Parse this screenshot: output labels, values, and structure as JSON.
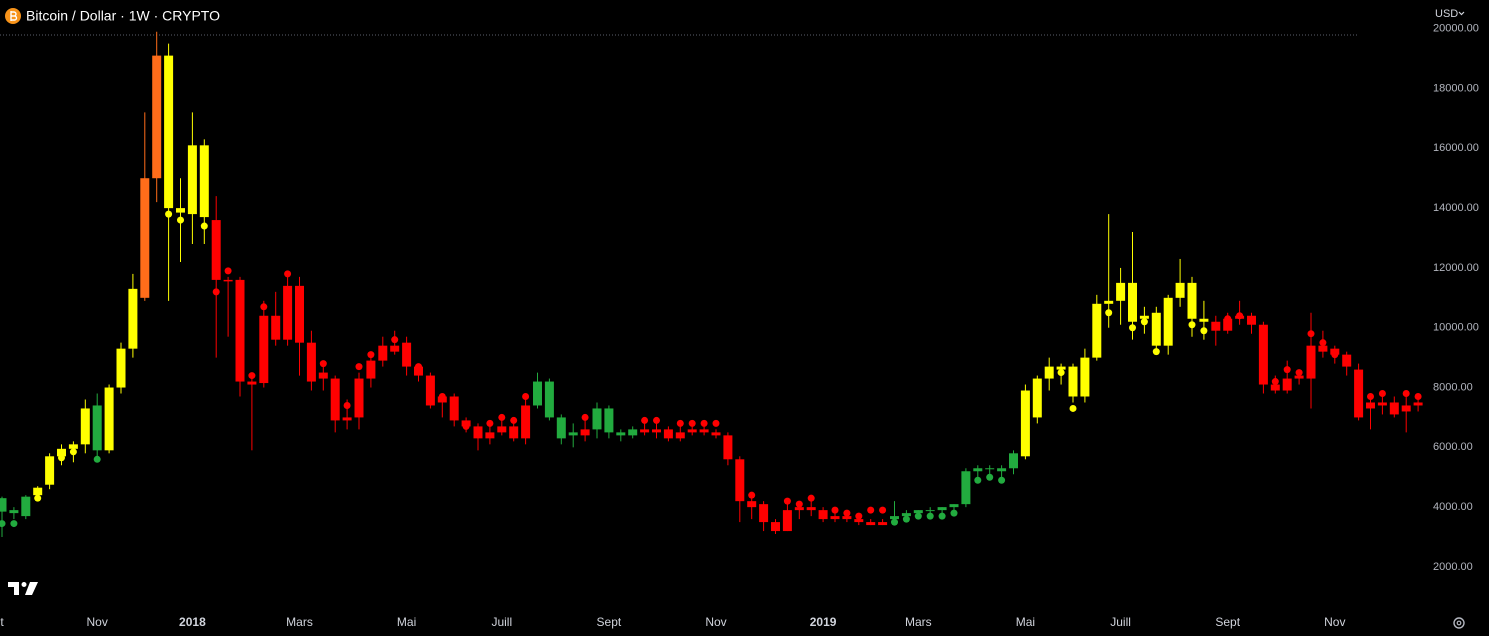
{
  "chart_data": {
    "type": "candlestick",
    "title": "Bitcoin / Dollar · 1W · CRYPTO",
    "currency": "USD",
    "categories": [
      "t",
      null,
      null,
      null,
      null,
      null,
      null,
      null,
      "Nov",
      null,
      null,
      null,
      null,
      null,
      null,
      null,
      "2018",
      null,
      null,
      null,
      null,
      null,
      null,
      null,
      null,
      "Mars",
      null,
      null,
      null,
      null,
      null,
      null,
      null,
      null,
      "Mai",
      null,
      null,
      null,
      null,
      null,
      null,
      null,
      "Juill",
      null,
      null,
      null,
      null,
      null,
      null,
      null,
      null,
      "Sept",
      null,
      null,
      null,
      null,
      null,
      null,
      null,
      null,
      "Nov",
      null,
      null,
      null,
      null,
      null,
      null,
      null,
      null,
      "2019",
      null,
      null,
      null,
      null,
      null,
      null,
      null,
      "Mars",
      null,
      null,
      null,
      null,
      null,
      null,
      null,
      null,
      "Mai",
      null,
      null,
      null,
      null,
      null,
      null,
      null,
      "Juill",
      null,
      null,
      null,
      null,
      null,
      null,
      null,
      null,
      "Sept",
      null,
      null,
      null,
      null,
      null,
      null,
      null,
      null,
      "Nov",
      null,
      null,
      null,
      null,
      null,
      null,
      null
    ],
    "open": [
      3850,
      3800,
      3700,
      4400,
      4750,
      5700,
      5950,
      6100,
      5900,
      5900,
      8000,
      9300,
      11000,
      15000,
      19100,
      14000,
      13800,
      16100,
      13600,
      11600,
      11600,
      8200,
      8150,
      10400,
      9600,
      11400,
      9500,
      8500,
      8300,
      6900,
      7000,
      8300,
      8900,
      9400,
      9500,
      8700,
      8400,
      7700,
      7700,
      6900,
      6700,
      6300,
      6500,
      6700,
      6300,
      7400,
      8200,
      7000,
      6500,
      6400,
      6600,
      7300,
      6500,
      6400,
      6600,
      6500,
      6600,
      6300,
      6500,
      6600,
      6500,
      6400,
      5600,
      4200,
      4100,
      3500,
      3200,
      3900,
      4000,
      3900,
      3600,
      3700,
      3600,
      3500,
      3400,
      3600,
      3700,
      3800,
      3900,
      3900,
      4000,
      4100,
      5200,
      5300,
      5300,
      5300,
      5700,
      7000,
      8300,
      8700,
      8700,
      7700,
      9000,
      10800,
      10900,
      11500,
      10400,
      10500,
      9400,
      11000,
      11500,
      10300,
      10200,
      9900,
      10300,
      10400,
      10100,
      8100,
      7900,
      8300,
      8300,
      9400,
      9300,
      9100,
      8600,
      7300,
      7500,
      7500,
      7200,
      7400
    ],
    "high": [
      4350,
      4000,
      4400,
      4700,
      5800,
      6100,
      6200,
      7600,
      7800,
      8100,
      9500,
      11800,
      17200,
      19900,
      19500,
      15000,
      17200,
      16300,
      14400,
      11700,
      11700,
      8500,
      10900,
      11200,
      11800,
      11700,
      9900,
      8900,
      8400,
      7600,
      8500,
      9100,
      9700,
      9900,
      9700,
      8800,
      8500,
      7800,
      7800,
      7000,
      6800,
      6800,
      7000,
      6900,
      7700,
      8500,
      8300,
      7100,
      6800,
      7100,
      7500,
      7400,
      6600,
      6700,
      7000,
      6900,
      6700,
      6700,
      6700,
      6700,
      6600,
      6500,
      5700,
      4400,
      4200,
      3600,
      4200,
      4100,
      4200,
      4000,
      3800,
      3800,
      3700,
      3600,
      3600,
      4200,
      3900,
      3900,
      4000,
      4000,
      4100,
      5300,
      5400,
      5400,
      5400,
      5900,
      8100,
      8400,
      9000,
      8800,
      8800,
      9300,
      11100,
      13800,
      12000,
      13200,
      10700,
      10700,
      11100,
      12300,
      11700,
      10900,
      10400,
      10500,
      10900,
      10500,
      10200,
      8400,
      8900,
      8600,
      10500,
      9900,
      9400,
      9200,
      8800,
      7700,
      7900,
      7700,
      7700,
      7800
    ],
    "low": [
      3000,
      3600,
      3600,
      4200,
      4600,
      5400,
      5500,
      5800,
      5500,
      5800,
      7800,
      9000,
      10900,
      14200,
      10900,
      12200,
      12800,
      12800,
      9000,
      9700,
      7700,
      5900,
      8000,
      9400,
      9400,
      8400,
      7900,
      7900,
      6500,
      6600,
      6600,
      8000,
      8700,
      9100,
      8400,
      8200,
      7300,
      7000,
      6700,
      6500,
      5900,
      6100,
      6400,
      6200,
      6100,
      7300,
      6900,
      6100,
      6000,
      6200,
      6300,
      6300,
      6200,
      6300,
      6400,
      6300,
      6200,
      6200,
      6400,
      6400,
      6300,
      5400,
      3500,
      3600,
      3200,
      3100,
      3200,
      3600,
      3700,
      3500,
      3500,
      3500,
      3400,
      3400,
      3400,
      3500,
      3600,
      3700,
      3700,
      3800,
      3800,
      4000,
      4900,
      5000,
      4900,
      5100,
      5600,
      6800,
      7900,
      8100,
      7500,
      7500,
      8900,
      10000,
      10100,
      9600,
      9800,
      9200,
      9100,
      10700,
      9700,
      9600,
      9400,
      9800,
      10100,
      9800,
      7800,
      7800,
      7800,
      8100,
      7300,
      9000,
      8800,
      8400,
      6900,
      6600,
      7100,
      7000,
      6500,
      7200
    ],
    "close": [
      4300,
      3900,
      4350,
      4650,
      5700,
      5950,
      6100,
      7300,
      7400,
      8000,
      9300,
      11300,
      15000,
      19100,
      14000,
      13850,
      16100,
      13700,
      11600,
      11550,
      8200,
      8100,
      10400,
      9600,
      11400,
      9500,
      8200,
      8300,
      6900,
      7000,
      8300,
      8900,
      9400,
      9200,
      8700,
      8400,
      7400,
      7500,
      6900,
      6700,
      6300,
      6500,
      6700,
      6300,
      7400,
      8200,
      7000,
      6300,
      6400,
      6600,
      7300,
      6500,
      6400,
      6600,
      6500,
      6600,
      6300,
      6500,
      6600,
      6500,
      6400,
      5600,
      4200,
      4000,
      3500,
      3200,
      3900,
      4000,
      3900,
      3600,
      3700,
      3600,
      3500,
      3400,
      3500,
      3700,
      3800,
      3900,
      3900,
      4000,
      4100,
      5200,
      5300,
      5300,
      5200,
      5800,
      7900,
      8300,
      8700,
      8600,
      7700,
      9000,
      10800,
      10900,
      11500,
      10200,
      10300,
      9400,
      11000,
      11500,
      10300,
      10200,
      9900,
      10300,
      10400,
      10100,
      8100,
      7900,
      8300,
      8400,
      9400,
      9200,
      9100,
      8700,
      7000,
      7500,
      7400,
      7100,
      7400,
      7500
    ],
    "dots": [
      3450,
      3450,
      null,
      4300,
      null,
      5650,
      5850,
      null,
      5600,
      null,
      null,
      null,
      null,
      null,
      13800,
      13600,
      null,
      13400,
      11200,
      11900,
      null,
      8400,
      10700,
      null,
      11800,
      null,
      null,
      8800,
      null,
      7400,
      8700,
      9100,
      null,
      9600,
      null,
      8700,
      null,
      7700,
      null,
      6700,
      6500,
      6800,
      7000,
      6900,
      7700,
      null,
      null,
      null,
      null,
      7000,
      null,
      null,
      null,
      null,
      6900,
      6900,
      null,
      6800,
      6800,
      6800,
      6800,
      null,
      null,
      4400,
      null,
      null,
      4200,
      4100,
      4300,
      null,
      3900,
      3800,
      3700,
      3900,
      3900,
      3500,
      3600,
      3700,
      3700,
      3700,
      3800,
      null,
      4900,
      5000,
      4900,
      null,
      null,
      null,
      null,
      8500,
      7300,
      null,
      null,
      10500,
      null,
      10000,
      10200,
      9200,
      null,
      null,
      10100,
      9900,
      null,
      10300,
      10400,
      null,
      null,
      8200,
      8600,
      8500,
      9800,
      9500,
      9100,
      null,
      null,
      7700,
      7800,
      null,
      7800,
      7700
    ],
    "colors": [
      "#22ab3f",
      "#22ab3f",
      "#22ab3f",
      "#ffff00",
      "#ffff00",
      "#ffff00",
      "#ffff00",
      "#ffff00",
      "#22ab3f",
      "#ffff00",
      "#ffff00",
      "#ffff00",
      "#ff6d1a",
      "#ff6d1a",
      "#ffff00",
      "#ffff00",
      "#ffff00",
      "#ffff00",
      "#ff0000",
      "#ff0000",
      "#ff0000",
      "#ff0000",
      "#ff0000",
      "#ff0000",
      "#ff0000",
      "#ff0000",
      "#ff0000",
      "#ff0000",
      "#ff0000",
      "#ff0000",
      "#ff0000",
      "#ff0000",
      "#ff0000",
      "#ff0000",
      "#ff0000",
      "#ff0000",
      "#ff0000",
      "#ff0000",
      "#ff0000",
      "#ff0000",
      "#ff0000",
      "#ff0000",
      "#ff0000",
      "#ff0000",
      "#ff0000",
      "#22ab3f",
      "#22ab3f",
      "#22ab3f",
      "#22ab3f",
      "#ff0000",
      "#22ab3f",
      "#22ab3f",
      "#22ab3f",
      "#22ab3f",
      "#ff0000",
      "#ff0000",
      "#ff0000",
      "#ff0000",
      "#ff0000",
      "#ff0000",
      "#ff0000",
      "#ff0000",
      "#ff0000",
      "#ff0000",
      "#ff0000",
      "#ff0000",
      "#ff0000",
      "#ff0000",
      "#ff0000",
      "#ff0000",
      "#ff0000",
      "#ff0000",
      "#ff0000",
      "#ff0000",
      "#ff0000",
      "#22ab3f",
      "#22ab3f",
      "#22ab3f",
      "#22ab3f",
      "#22ab3f",
      "#22ab3f",
      "#22ab3f",
      "#22ab3f",
      "#22ab3f",
      "#22ab3f",
      "#22ab3f",
      "#ffff00",
      "#ffff00",
      "#ffff00",
      "#ffff00",
      "#ffff00",
      "#ffff00",
      "#ffff00",
      "#ffff00",
      "#ffff00",
      "#ffff00",
      "#ffff00",
      "#ffff00",
      "#ffff00",
      "#ffff00",
      "#ffff00",
      "#ffff00",
      "#ff0000",
      "#ff0000",
      "#ff0000",
      "#ff0000",
      "#ff0000",
      "#ff0000",
      "#ff0000",
      "#ff0000",
      "#ff0000",
      "#ff0000",
      "#ff0000",
      "#ff0000",
      "#ff0000",
      "#ff0000",
      "#ff0000",
      "#ff0000",
      "#ff0000",
      "#ff0000"
    ],
    "ylim": [
      560,
      20960
    ],
    "yticks": [
      {
        "value": 2000,
        "label": "2000.00"
      },
      {
        "value": 4000,
        "label": "4000.00"
      },
      {
        "value": 6000,
        "label": "6000.00"
      },
      {
        "value": 8000,
        "label": "8000.00"
      },
      {
        "value": 10000,
        "label": "10000.00"
      },
      {
        "value": 12000,
        "label": "12000.00"
      },
      {
        "value": 14000,
        "label": "14000.00"
      },
      {
        "value": 16000,
        "label": "16000.00"
      },
      {
        "value": 18000,
        "label": "18000.00"
      },
      {
        "value": 20000,
        "label": "20000.00"
      }
    ]
  }
}
